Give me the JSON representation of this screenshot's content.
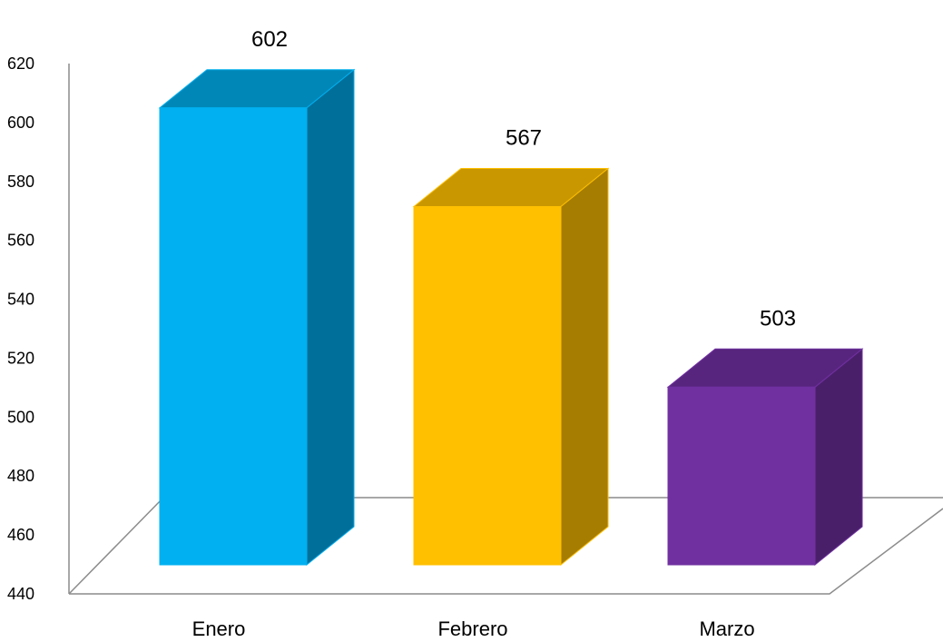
{
  "chart_data": {
    "type": "bar",
    "style": "3d-column",
    "categories": [
      "Enero",
      "Febrero",
      "Marzo"
    ],
    "values": [
      602,
      567,
      503
    ],
    "ylim": [
      440,
      620
    ],
    "yticks": [
      440,
      460,
      480,
      500,
      520,
      540,
      560,
      580,
      600,
      620
    ],
    "grid": false,
    "legend": "none",
    "title": "",
    "xlabel": "",
    "ylabel": "",
    "colors": [
      {
        "front": "#00B0F0",
        "top": "#0087B8",
        "side": "#006F9A"
      },
      {
        "front": "#FFC000",
        "top": "#C99700",
        "side": "#A67D00"
      },
      {
        "front": "#7030A0",
        "top": "#58257E",
        "side": "#4A1F6A"
      }
    ]
  }
}
